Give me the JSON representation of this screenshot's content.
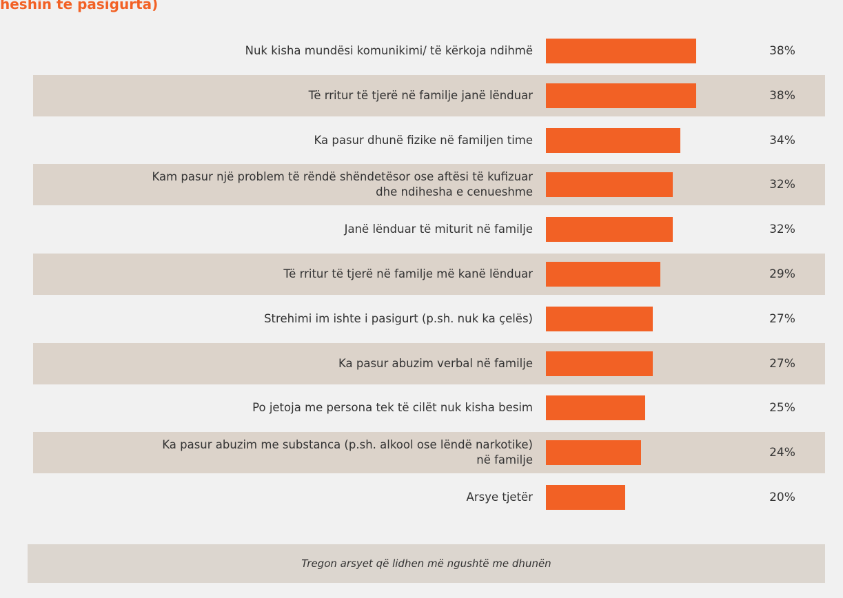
{
  "chart_data": {
    "type": "bar",
    "orientation": "horizontal",
    "title": "heshin të pasigurta)",
    "categories": [
      "Nuk kisha mundësi komunikimi/ të kërkoja ndihmë",
      "Të rritur të tjerë në familje janë lënduar",
      "Ka pasur dhunë fizike në familjen time",
      "Kam pasur një problem të rëndë shëndetësor ose aftësi të kufizuar\ndhe ndihesha e cenueshme",
      "Janë lënduar të miturit në familje",
      "Të rritur të tjerë në familje më kanë lënduar",
      "Strehimi im ishte i pasigurt (p.sh. nuk ka çelës)",
      "Ka pasur abuzim verbal në familje",
      "Po jetoja me persona tek të cilët nuk kisha besim",
      "Ka pasur abuzim me substanca (p.sh. alkool ose lëndë narkotike)\nnë familje",
      "Arsye tjetër"
    ],
    "values": [
      38,
      38,
      34,
      32,
      32,
      29,
      27,
      27,
      25,
      24,
      20
    ],
    "value_labels": [
      "38%",
      "38%",
      "34%",
      "32%",
      "32%",
      "29%",
      "27%",
      "27%",
      "25%",
      "24%",
      "20%"
    ],
    "color": "#f26125",
    "note": "Tregon arsyet që lidhen më ngushtë me dhunën"
  }
}
